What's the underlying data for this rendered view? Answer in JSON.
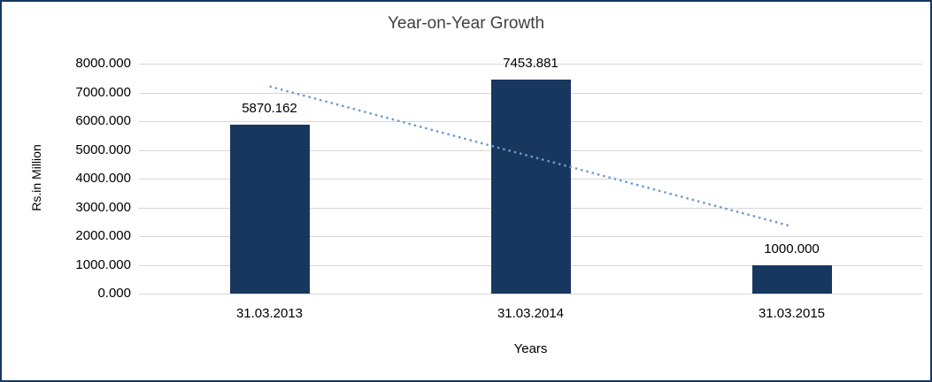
{
  "chart_data": {
    "type": "bar",
    "title": "Year-on-Year Growth",
    "xlabel": "Years",
    "ylabel": "Rs.in Million",
    "categories": [
      "31.03.2013",
      "31.03.2014",
      "31.03.2015"
    ],
    "values": [
      5870.162,
      7453.881,
      1000.0
    ],
    "data_labels": [
      "5870.162",
      "7453.881",
      "1000.000"
    ],
    "ylim": [
      0,
      8000
    ],
    "ytick_step": 1000,
    "ytick_labels": [
      "0.000",
      "1000.000",
      "2000.000",
      "3000.000",
      "4000.000",
      "5000.000",
      "6000.000",
      "7000.000",
      "8000.000"
    ],
    "grid": true,
    "legend": "none",
    "bar_color": "#17375e",
    "border_color": "#17375e",
    "gridline_color": "#d6d6d6",
    "trendline": {
      "type": "linear",
      "style": "dotted",
      "color": "#6b9bd2",
      "start_value": 7210,
      "end_value": 2340
    }
  }
}
